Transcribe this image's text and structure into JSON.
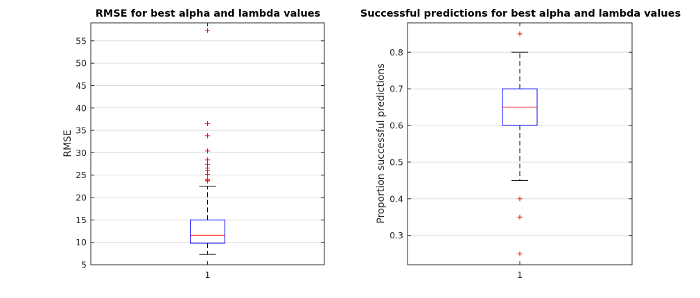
{
  "chart_data": [
    {
      "type": "box",
      "title": "RMSE for best alpha and lambda values",
      "ylabel": "RMSE",
      "xlabel": "",
      "x_ticks": [
        "1"
      ],
      "ylim": [
        5,
        59
      ],
      "y_ticks": [
        5,
        10,
        15,
        20,
        25,
        30,
        35,
        40,
        45,
        50,
        55
      ],
      "grid": true,
      "box": {
        "whisker_low": 7.3,
        "q1": 9.8,
        "median": 11.6,
        "q3": 15.0,
        "whisker_high": 22.5,
        "outliers": [
          23.7,
          23.9,
          24.0,
          25.2,
          26.0,
          26.6,
          27.4,
          28.4,
          30.4,
          33.8,
          36.5,
          57.3
        ]
      },
      "colors": {
        "box": "#0000ff",
        "median": "#ff0000",
        "whisker": "#000000",
        "outlier": "#ff0000"
      }
    },
    {
      "type": "box",
      "title": "Successful predictions for best alpha and lambda values",
      "ylabel": "Proportion successful predictions",
      "xlabel": "",
      "x_ticks": [
        "1"
      ],
      "ylim": [
        0.22,
        0.88
      ],
      "y_ticks": [
        0.3,
        0.4,
        0.5,
        0.6,
        0.7,
        0.8
      ],
      "grid": true,
      "box": {
        "whisker_low": 0.45,
        "q1": 0.6,
        "median": 0.65,
        "q3": 0.7,
        "whisker_high": 0.8,
        "outliers": [
          0.25,
          0.35,
          0.4,
          0.85
        ]
      },
      "colors": {
        "box": "#0000ff",
        "median": "#ff0000",
        "whisker": "#000000",
        "outlier": "#ff0000"
      }
    }
  ]
}
